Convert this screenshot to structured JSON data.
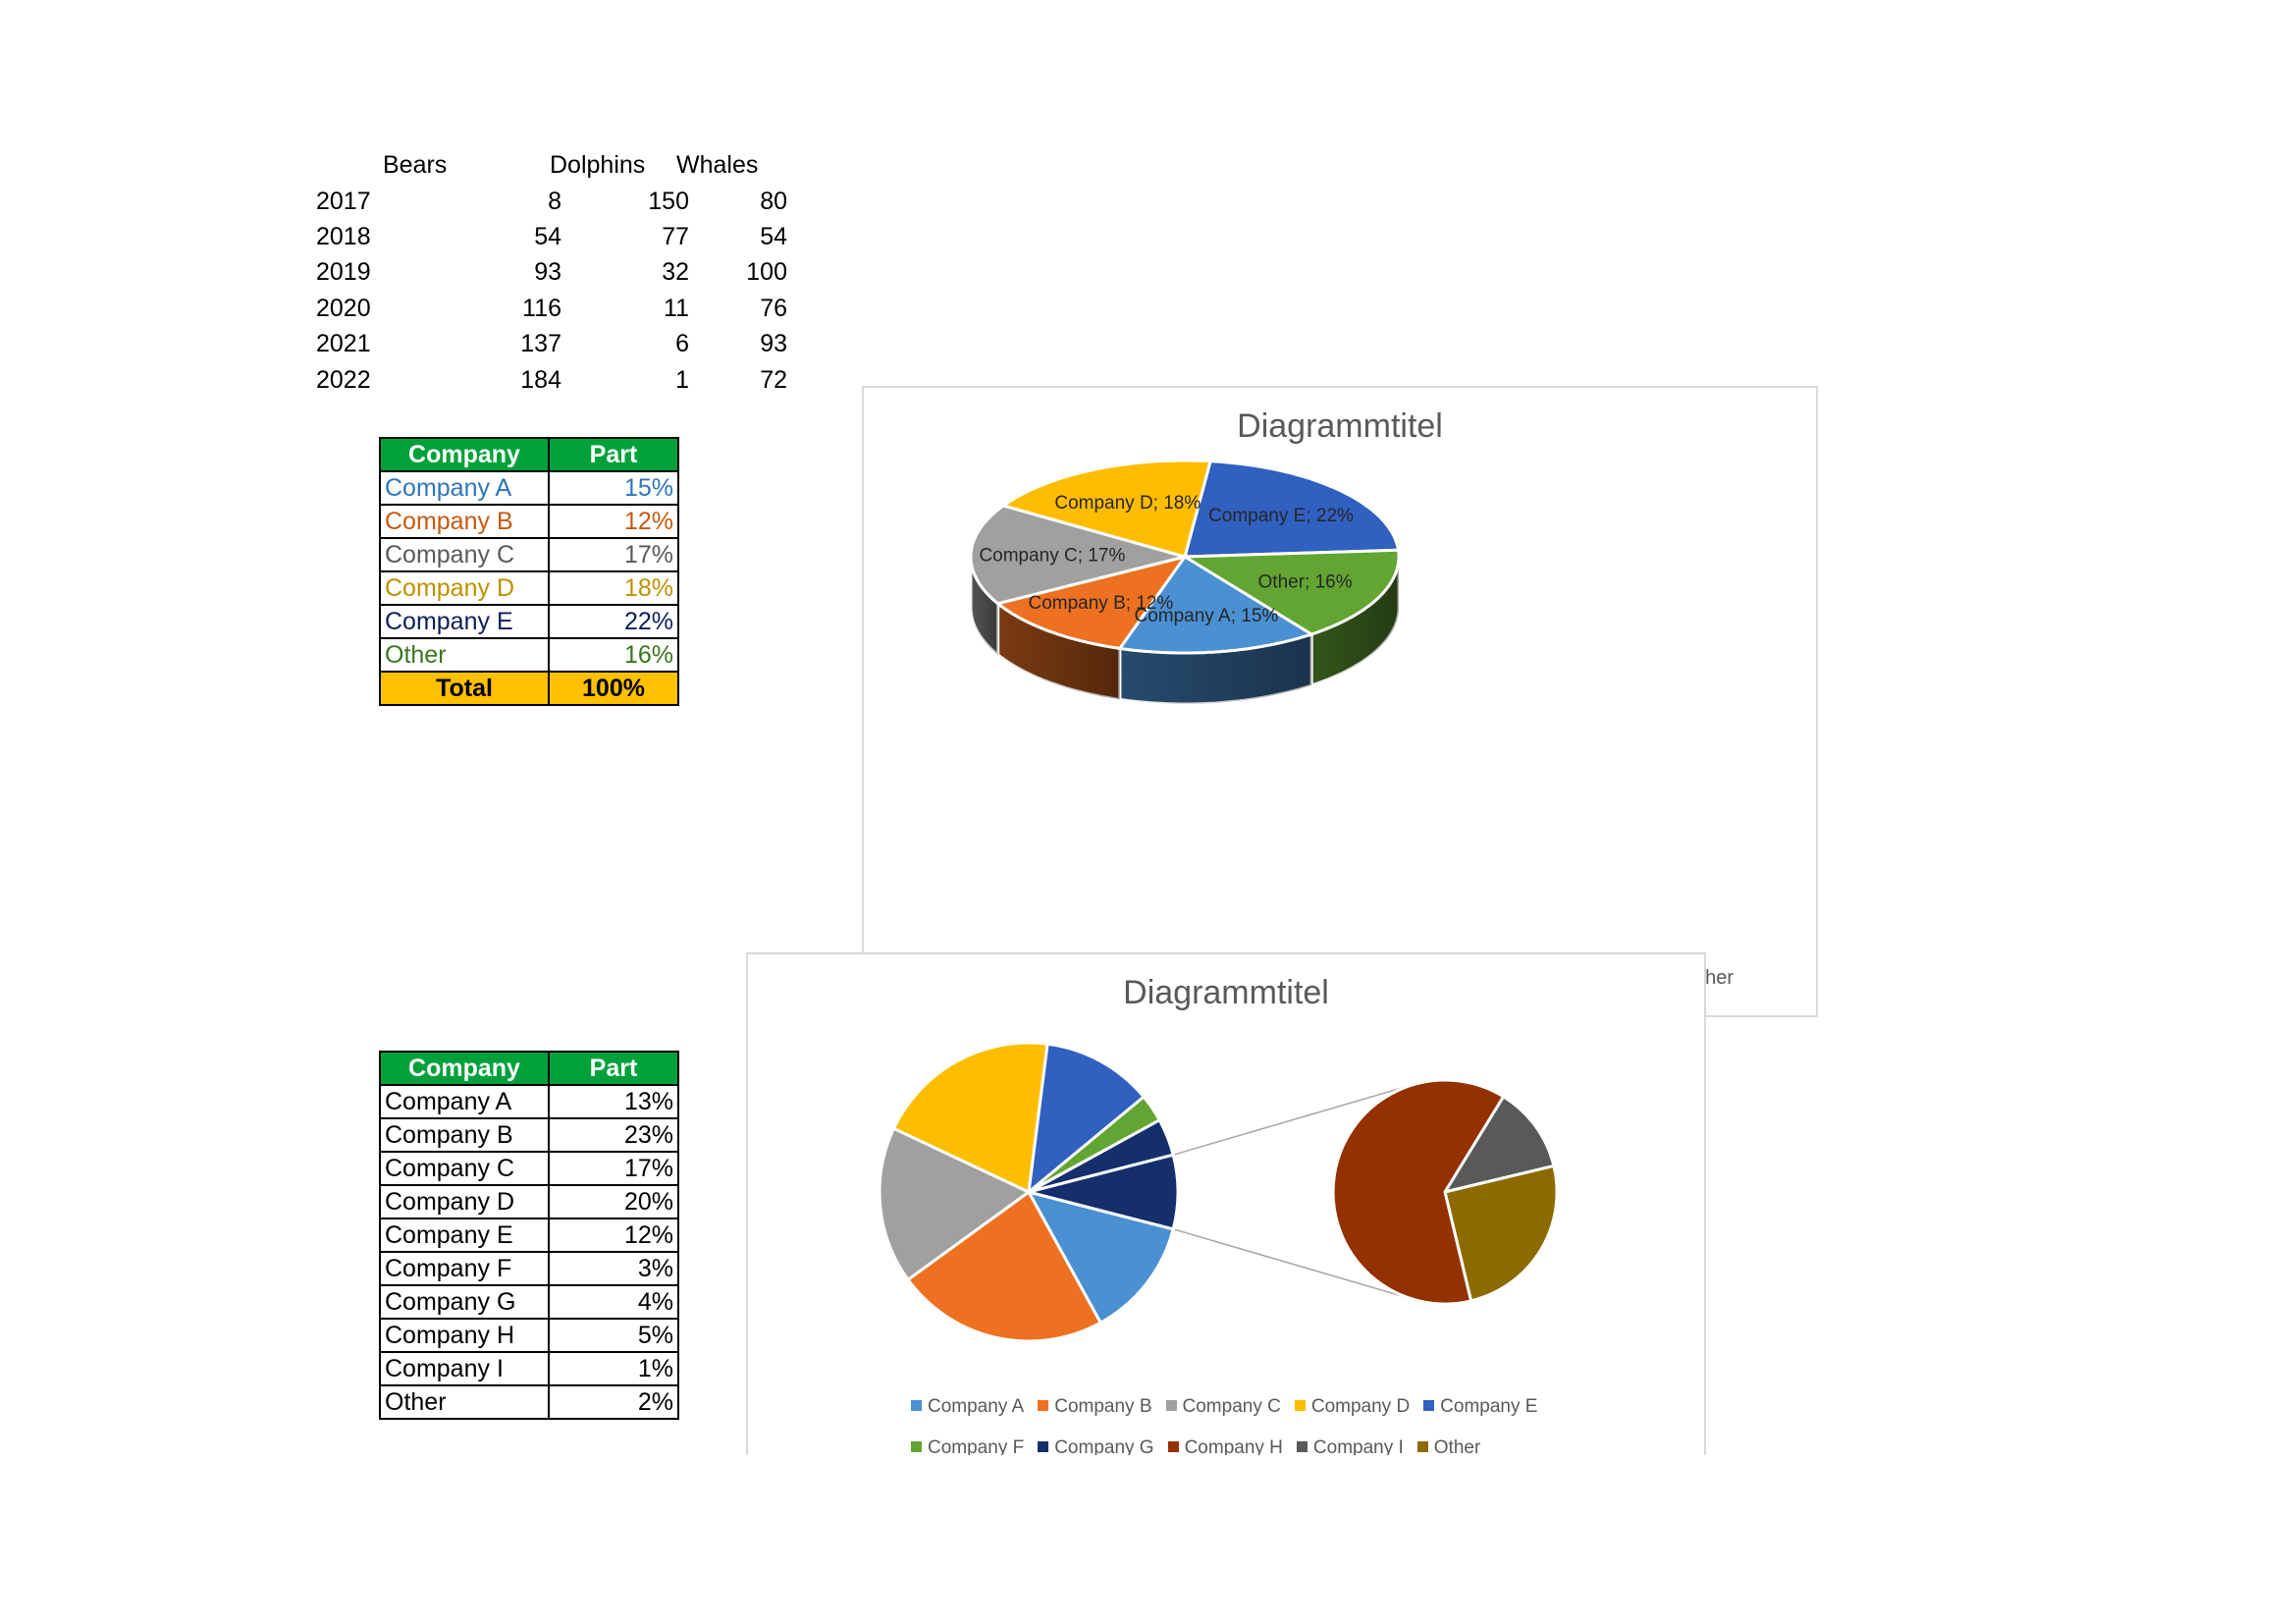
{
  "animals_table": {
    "headers": [
      "Bears",
      "Dolphins",
      "Whales"
    ],
    "rows": [
      {
        "year": "2017",
        "bears": "8",
        "dolphins": "150",
        "whales": "80"
      },
      {
        "year": "2018",
        "bears": "54",
        "dolphins": "77",
        "whales": "54"
      },
      {
        "year": "2019",
        "bears": "93",
        "dolphins": "32",
        "whales": "100"
      },
      {
        "year": "2020",
        "bears": "116",
        "dolphins": "11",
        "whales": "76"
      },
      {
        "year": "2021",
        "bears": "137",
        "dolphins": "6",
        "whales": "93"
      },
      {
        "year": "2022",
        "bears": "184",
        "dolphins": "1",
        "whales": "72"
      }
    ]
  },
  "company_table_1": {
    "header_company": "Company",
    "header_part": "Part",
    "rows": [
      {
        "name": "Company A",
        "part": "15%",
        "color": "#2e75b6"
      },
      {
        "name": "Company B",
        "part": "12%",
        "color": "#c55a11"
      },
      {
        "name": "Company C",
        "part": "17%",
        "color": "#595959"
      },
      {
        "name": "Company D",
        "part": "18%",
        "color": "#bf9000"
      },
      {
        "name": "Company E",
        "part": "22%",
        "color": "#0c1f5a"
      },
      {
        "name": "Other",
        "part": "16%",
        "color": "#38761d"
      }
    ],
    "total_label": "Total",
    "total_value": "100%"
  },
  "company_table_2": {
    "header_company": "Company",
    "header_part": "Part",
    "rows": [
      {
        "name": "Company A",
        "part": "13%"
      },
      {
        "name": "Company B",
        "part": "23%"
      },
      {
        "name": "Company C",
        "part": "17%"
      },
      {
        "name": "Company D",
        "part": "20%"
      },
      {
        "name": "Company E",
        "part": "12%"
      },
      {
        "name": "Company F",
        "part": "3%"
      },
      {
        "name": "Company G",
        "part": "4%"
      },
      {
        "name": "Company H",
        "part": "5%"
      },
      {
        "name": "Company I",
        "part": "1%"
      },
      {
        "name": "Other",
        "part": "2%"
      }
    ]
  },
  "chart_data": [
    {
      "type": "pie",
      "variant": "3d",
      "title": "Diagrammtitel",
      "categories": [
        "Company A",
        "Company B",
        "Company C",
        "Company D",
        "Company E",
        "Other"
      ],
      "values": [
        15,
        12,
        17,
        18,
        22,
        16
      ],
      "data_labels": [
        "Company A; 15%",
        "Company B; 12%",
        "Company C; 17%",
        "Company D; 18%",
        "Company E; 22%",
        "Other; 16%"
      ],
      "colors": [
        "#4a90d2",
        "#ed7120",
        "#a0a0a0",
        "#ffbd00",
        "#3060c0",
        "#62a532"
      ],
      "legend_fragment": "Other"
    },
    {
      "type": "pie",
      "variant": "pie-of-pie",
      "title": "Diagrammtitel",
      "categories": [
        "Company A",
        "Company B",
        "Company C",
        "Company D",
        "Company E",
        "Company F",
        "Company G",
        "Company H",
        "Company I",
        "Other"
      ],
      "values": [
        13,
        23,
        17,
        20,
        12,
        3,
        4,
        5,
        1,
        2
      ],
      "colors": [
        "#4a90d2",
        "#ed7120",
        "#a0a0a0",
        "#ffbd00",
        "#3060c0",
        "#62a532",
        "#142f6b",
        "#943100",
        "#595959",
        "#8c6a00"
      ],
      "legend": "bottom"
    }
  ]
}
